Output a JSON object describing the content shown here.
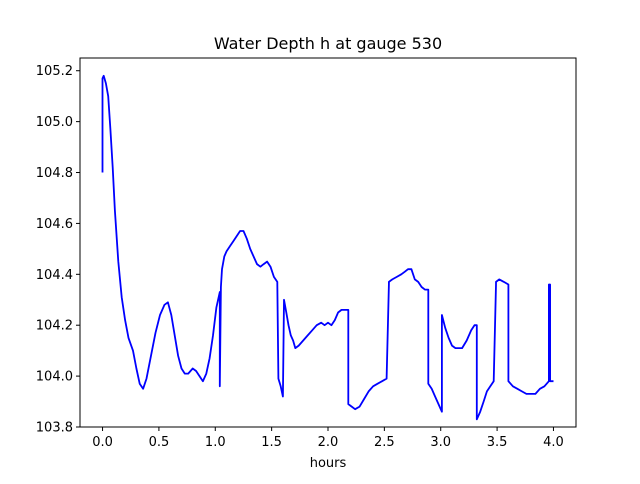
{
  "chart_data": {
    "type": "line",
    "title": "Water Depth h at gauge 530",
    "xlabel": "hours",
    "ylabel": "",
    "xlim": [
      -0.2,
      4.2
    ],
    "ylim": [
      103.8,
      105.25
    ],
    "xticks": [
      0.0,
      0.5,
      1.0,
      1.5,
      2.0,
      2.5,
      3.0,
      3.5,
      4.0
    ],
    "xtick_labels": [
      "0.0",
      "0.5",
      "1.0",
      "1.5",
      "2.0",
      "2.5",
      "3.0",
      "3.5",
      "4.0"
    ],
    "yticks": [
      103.8,
      104.0,
      104.2,
      104.4,
      104.6,
      104.8,
      105.0,
      105.2
    ],
    "ytick_labels": [
      "103.8",
      "104.0",
      "104.2",
      "104.4",
      "104.6",
      "104.8",
      "105.0",
      "105.2"
    ],
    "grid": false,
    "series": [
      {
        "color": "#0000ff",
        "x": [
          0.0,
          0.0,
          0.01,
          0.03,
          0.05,
          0.07,
          0.09,
          0.11,
          0.14,
          0.17,
          0.2,
          0.23,
          0.27,
          0.3,
          0.33,
          0.36,
          0.39,
          0.43,
          0.47,
          0.51,
          0.55,
          0.58,
          0.61,
          0.64,
          0.67,
          0.7,
          0.73,
          0.76,
          0.8,
          0.83,
          0.86,
          0.89,
          0.92,
          0.95,
          0.98,
          1.01,
          1.04,
          1.04,
          1.05,
          1.06,
          1.08,
          1.1,
          1.13,
          1.16,
          1.19,
          1.22,
          1.25,
          1.28,
          1.31,
          1.34,
          1.37,
          1.4,
          1.43,
          1.46,
          1.49,
          1.52,
          1.55,
          1.56,
          1.58,
          1.6,
          1.61,
          1.63,
          1.65,
          1.67,
          1.69,
          1.71,
          1.74,
          1.78,
          1.82,
          1.86,
          1.9,
          1.94,
          1.97,
          2.0,
          2.03,
          2.06,
          2.09,
          2.12,
          2.15,
          2.18,
          2.18,
          2.21,
          2.24,
          2.28,
          2.32,
          2.36,
          2.4,
          2.44,
          2.48,
          2.52,
          2.54,
          2.54,
          2.57,
          2.61,
          2.65,
          2.68,
          2.71,
          2.74,
          2.77,
          2.8,
          2.83,
          2.86,
          2.89,
          2.89,
          2.92,
          2.95,
          2.98,
          3.01,
          3.01,
          3.04,
          3.07,
          3.1,
          3.13,
          3.16,
          3.19,
          3.23,
          3.27,
          3.3,
          3.32,
          3.32,
          3.35,
          3.38,
          3.41,
          3.44,
          3.47,
          3.49,
          3.49,
          3.52,
          3.56,
          3.6,
          3.6,
          3.64,
          3.68,
          3.72,
          3.76,
          3.8,
          3.84,
          3.88,
          3.92,
          3.96,
          3.96,
          3.97,
          3.97,
          4.0
        ],
        "y": [
          104.8,
          105.17,
          105.18,
          105.15,
          105.1,
          104.97,
          104.82,
          104.65,
          104.45,
          104.31,
          104.22,
          104.15,
          104.1,
          104.03,
          103.97,
          103.95,
          103.99,
          104.08,
          104.17,
          104.24,
          104.28,
          104.29,
          104.24,
          104.16,
          104.08,
          104.03,
          104.01,
          104.01,
          104.03,
          104.02,
          104.0,
          103.98,
          104.01,
          104.07,
          104.16,
          104.27,
          104.33,
          103.96,
          104.35,
          104.42,
          104.47,
          104.49,
          104.51,
          104.53,
          104.55,
          104.57,
          104.57,
          104.54,
          104.5,
          104.47,
          104.44,
          104.43,
          104.44,
          104.45,
          104.43,
          104.39,
          104.37,
          103.99,
          103.96,
          103.92,
          104.3,
          104.25,
          104.2,
          104.16,
          104.14,
          104.11,
          104.12,
          104.14,
          104.16,
          104.18,
          104.2,
          104.21,
          104.2,
          104.21,
          104.2,
          104.22,
          104.25,
          104.26,
          104.26,
          104.26,
          103.89,
          103.88,
          103.87,
          103.88,
          103.91,
          103.94,
          103.96,
          103.97,
          103.98,
          103.99,
          104.36,
          104.37,
          104.38,
          104.39,
          104.4,
          104.41,
          104.42,
          104.42,
          104.38,
          104.37,
          104.35,
          104.34,
          104.34,
          103.97,
          103.95,
          103.92,
          103.89,
          103.86,
          104.24,
          104.19,
          104.15,
          104.12,
          104.11,
          104.11,
          104.11,
          104.14,
          104.18,
          104.2,
          104.2,
          103.83,
          103.86,
          103.9,
          103.94,
          103.96,
          103.98,
          104.36,
          104.37,
          104.38,
          104.37,
          104.36,
          103.98,
          103.96,
          103.95,
          103.94,
          103.93,
          103.93,
          103.93,
          103.95,
          103.96,
          103.98,
          104.36,
          104.36,
          103.98,
          103.98
        ]
      }
    ]
  }
}
